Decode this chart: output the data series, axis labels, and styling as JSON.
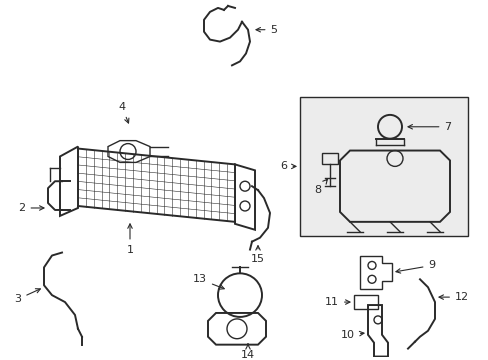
{
  "bg_color": "#ffffff",
  "line_color": "#2a2a2a",
  "box_bg": "#e8e8e8",
  "figsize": [
    4.89,
    3.6
  ],
  "dpi": 100
}
